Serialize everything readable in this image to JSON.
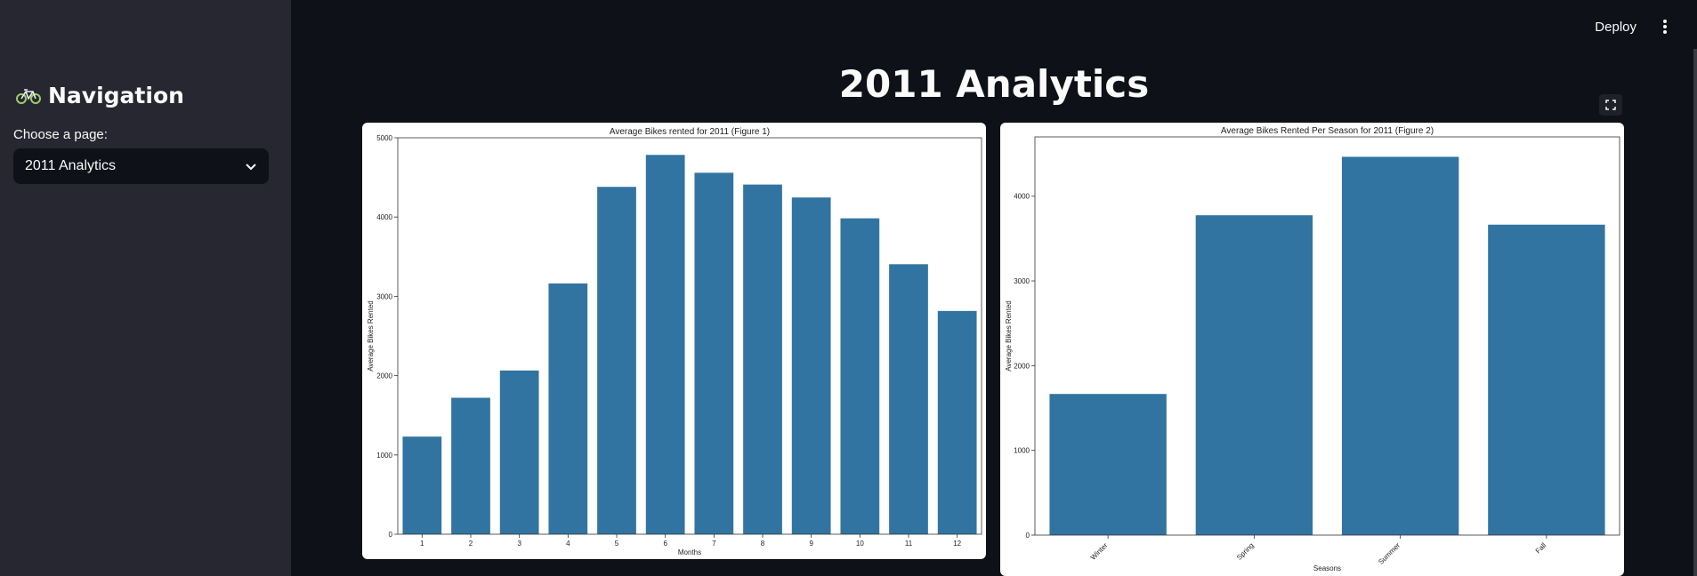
{
  "sidebar": {
    "nav_title": "Navigation",
    "choose_label": "Choose a page:",
    "selected_page": "2011 Analytics"
  },
  "header": {
    "deploy_label": "Deploy"
  },
  "main": {
    "title": "2011 Analytics"
  },
  "chart_data": [
    {
      "type": "bar",
      "title": "Average Bikes rented for 2011 (Figure 1)",
      "xlabel": "Months",
      "ylabel": "Average Bikes Rented",
      "categories": [
        "1",
        "2",
        "3",
        "4",
        "5",
        "6",
        "7",
        "8",
        "9",
        "10",
        "11",
        "12"
      ],
      "values": [
        1231,
        1721,
        2065,
        3163,
        4381,
        4784,
        4559,
        4410,
        4247,
        3984,
        3405,
        2816
      ],
      "ylim": [
        0,
        5000
      ],
      "yticks": [
        0,
        1000,
        2000,
        3000,
        4000,
        5000
      ],
      "color": "#3274a1",
      "grid": false
    },
    {
      "type": "bar",
      "title": "Average Bikes Rented Per Season for 2011 (Figure 2)",
      "xlabel": "Seasons",
      "ylabel": "Average Bikes Rented",
      "categories": [
        "Winter",
        "Spring",
        "Summer",
        "Fall"
      ],
      "values": [
        1666,
        3775,
        4465,
        3664
      ],
      "ylim": [
        0,
        4700
      ],
      "yticks": [
        0,
        1000,
        2000,
        3000,
        4000
      ],
      "color": "#3274a1",
      "grid": false
    }
  ]
}
